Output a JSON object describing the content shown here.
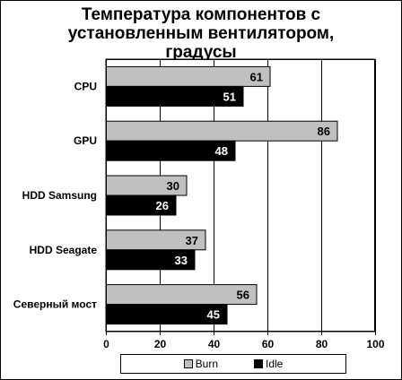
{
  "chart_data": {
    "type": "bar",
    "orientation": "horizontal",
    "title_lines": [
      "Температура компонентов с",
      "установленным вентилятором,",
      "градусы"
    ],
    "categories": [
      "CPU",
      "GPU",
      "HDD Samsung",
      "HDD Seagate",
      "Северный мост"
    ],
    "series": [
      {
        "name": "Burn",
        "values": [
          61,
          86,
          30,
          37,
          56
        ],
        "color": "#c0c0c0"
      },
      {
        "name": "Idle",
        "values": [
          51,
          48,
          26,
          33,
          45
        ],
        "color": "#000000"
      }
    ],
    "x_ticks": [
      "0",
      "20",
      "40",
      "60",
      "80",
      "100"
    ],
    "xlim": [
      0,
      100
    ],
    "grid": true,
    "legend_position": "bottom"
  }
}
